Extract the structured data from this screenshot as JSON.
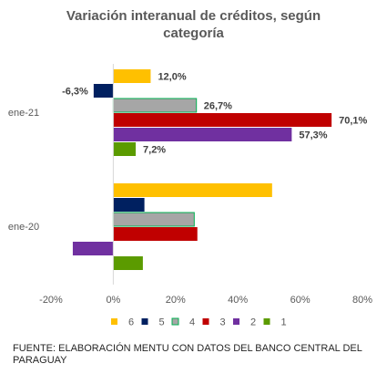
{
  "chart_data": {
    "type": "bar",
    "orientation": "horizontal",
    "title_lines": [
      "Variación interanual de créditos, según",
      "categoría"
    ],
    "categories": [
      "ene-21",
      "ene-20"
    ],
    "series": [
      {
        "name": "6",
        "color": "#FFC000",
        "values": [
          12.0,
          51.0
        ],
        "labels": [
          "12,0%",
          ""
        ]
      },
      {
        "name": "5",
        "color": "#002060",
        "values": [
          -6.3,
          10.0
        ],
        "labels": [
          "-6,3%",
          ""
        ]
      },
      {
        "name": "4",
        "color": "#A6A6A6",
        "border": "#00B050",
        "values": [
          26.7,
          26.0
        ],
        "labels": [
          "26,7%",
          ""
        ]
      },
      {
        "name": "3",
        "color": "#C00000",
        "values": [
          70.1,
          27.0
        ],
        "labels": [
          "70,1%",
          ""
        ]
      },
      {
        "name": "2",
        "color": "#7030A0",
        "values": [
          57.3,
          -13.0
        ],
        "labels": [
          "57,3%",
          ""
        ]
      },
      {
        "name": "1",
        "color": "#5B9B00",
        "values": [
          7.2,
          9.5
        ],
        "labels": [
          "7,2%",
          ""
        ]
      }
    ],
    "xlim": [
      -20,
      80
    ],
    "xticks": [
      "-20%",
      "0%",
      "20%",
      "40%",
      "60%",
      "80%"
    ],
    "xtick_values": [
      -20,
      0,
      20,
      40,
      60,
      80
    ],
    "legend_position": "bottom",
    "grid": false
  },
  "source_note": "FUENTE: ELABORACIÓN MENTU CON DATOS DEL BANCO CENTRAL DEL PARAGUAY"
}
